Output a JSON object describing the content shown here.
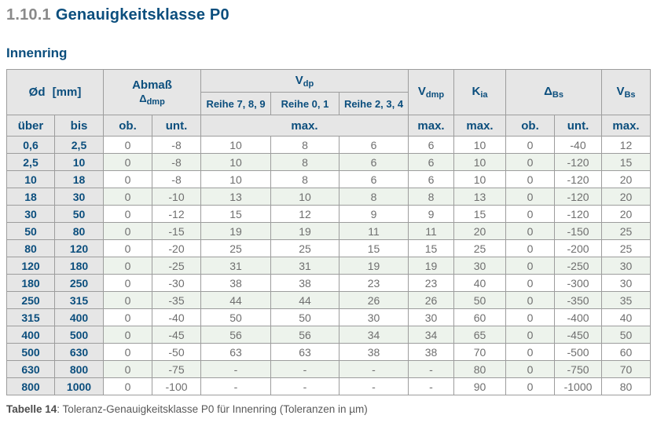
{
  "page": {
    "section_number": "1.10.1",
    "section_title": "Genauigkeitsklasse P0",
    "subtitle": "Innenring",
    "caption_label": "Tabelle 14",
    "caption_text": ": Toleranz-Genauigkeitsklasse P0 für Innenring (Toleranzen in µm)"
  },
  "colors": {
    "accent_blue": "#0b4e7d",
    "header_gray_bg": "#e6e6e6",
    "alt_row_green": "#edf3ec",
    "value_text_gray": "#6f6f6f",
    "border_gray": "#9d9d9d",
    "section_number_gray": "#8a8a8a"
  },
  "table": {
    "header": {
      "od": "Ød [mm]",
      "abmass_line1": "Abmaß",
      "abmass_sym": "Δ",
      "abmass_sub": "dmp",
      "vdp_main": "V",
      "vdp_sub": "dp",
      "reihe789": "Reihe 7, 8, 9",
      "reihe01": "Reihe 0, 1",
      "reihe234": "Reihe 2, 3, 4",
      "vdmp_main": "V",
      "vdmp_sub": "dmp",
      "kia_main": "K",
      "kia_sub": "ia",
      "dbs_main": "Δ",
      "dbs_sub": "Bs",
      "vbs_main": "V",
      "vbs_sub": "Bs",
      "ueber": "über",
      "bis": "bis",
      "ob1": "ob.",
      "unt1": "unt.",
      "max_vdp": "max.",
      "max_vdmp": "max.",
      "max_kia": "max.",
      "ob2": "ob.",
      "unt2": "unt.",
      "max_vbs": "max."
    },
    "rows": [
      [
        "0,6",
        "2,5",
        "0",
        "-8",
        "10",
        "8",
        "6",
        "6",
        "10",
        "0",
        "-40",
        "12"
      ],
      [
        "2,5",
        "10",
        "0",
        "-8",
        "10",
        "8",
        "6",
        "6",
        "10",
        "0",
        "-120",
        "15"
      ],
      [
        "10",
        "18",
        "0",
        "-8",
        "10",
        "8",
        "6",
        "6",
        "10",
        "0",
        "-120",
        "20"
      ],
      [
        "18",
        "30",
        "0",
        "-10",
        "13",
        "10",
        "8",
        "8",
        "13",
        "0",
        "-120",
        "20"
      ],
      [
        "30",
        "50",
        "0",
        "-12",
        "15",
        "12",
        "9",
        "9",
        "15",
        "0",
        "-120",
        "20"
      ],
      [
        "50",
        "80",
        "0",
        "-15",
        "19",
        "19",
        "11",
        "11",
        "20",
        "0",
        "-150",
        "25"
      ],
      [
        "80",
        "120",
        "0",
        "-20",
        "25",
        "25",
        "15",
        "15",
        "25",
        "0",
        "-200",
        "25"
      ],
      [
        "120",
        "180",
        "0",
        "-25",
        "31",
        "31",
        "19",
        "19",
        "30",
        "0",
        "-250",
        "30"
      ],
      [
        "180",
        "250",
        "0",
        "-30",
        "38",
        "38",
        "23",
        "23",
        "40",
        "0",
        "-300",
        "30"
      ],
      [
        "250",
        "315",
        "0",
        "-35",
        "44",
        "44",
        "26",
        "26",
        "50",
        "0",
        "-350",
        "35"
      ],
      [
        "315",
        "400",
        "0",
        "-40",
        "50",
        "50",
        "30",
        "30",
        "60",
        "0",
        "-400",
        "40"
      ],
      [
        "400",
        "500",
        "0",
        "-45",
        "56",
        "56",
        "34",
        "34",
        "65",
        "0",
        "-450",
        "50"
      ],
      [
        "500",
        "630",
        "0",
        "-50",
        "63",
        "63",
        "38",
        "38",
        "70",
        "0",
        "-500",
        "60"
      ],
      [
        "630",
        "800",
        "0",
        "-75",
        "-",
        "-",
        "-",
        "-",
        "80",
        "0",
        "-750",
        "70"
      ],
      [
        "800",
        "1000",
        "0",
        "-100",
        "-",
        "-",
        "-",
        "-",
        "90",
        "0",
        "-1000",
        "80"
      ]
    ]
  }
}
